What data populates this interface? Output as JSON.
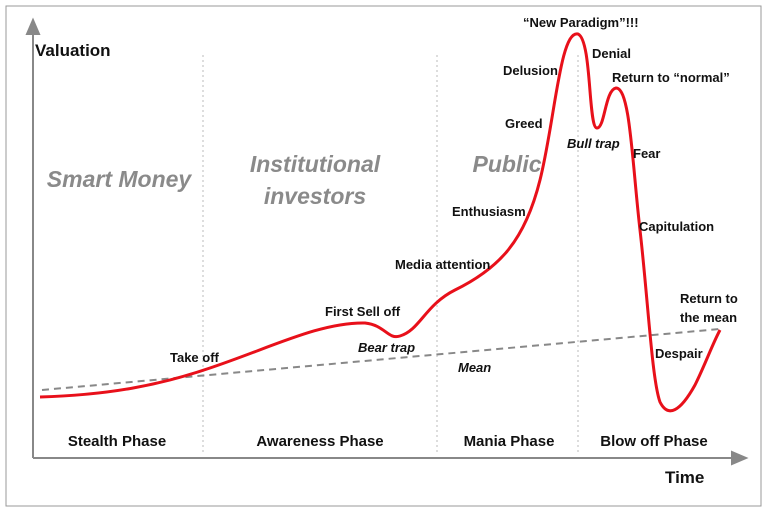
{
  "axes": {
    "y_label": "Valuation",
    "x_label": "Time"
  },
  "groups": [
    [
      "Smart Money"
    ],
    [
      "Institutional",
      "investors"
    ],
    [
      "Public"
    ]
  ],
  "phases": [
    "Stealth Phase",
    "Awareness Phase",
    "Mania Phase",
    "Blow off Phase"
  ],
  "annotations": {
    "take_off": "Take off",
    "first_sell_off": "First Sell off",
    "bear_trap": "Bear trap",
    "mean": "Mean",
    "media_attention": "Media attention",
    "enthusiasm": "Enthusiasm",
    "greed": "Greed",
    "delusion": "Delusion",
    "new_paradigm": "“New Paradigm”!!!",
    "denial": "Denial",
    "bull_trap": "Bull trap",
    "return_to_normal": "Return to “normal”",
    "fear": "Fear",
    "capitulation": "Capitulation",
    "despair": "Despair",
    "return_to_mean": [
      "Return to",
      "the mean"
    ]
  }
}
